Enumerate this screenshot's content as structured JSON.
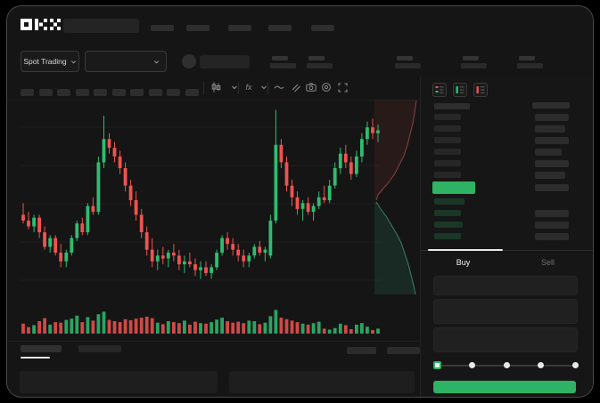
{
  "app": {
    "logo_text": "OKX"
  },
  "colors": {
    "up": "#2ebd70",
    "down": "#ee5350",
    "accent_green": "#2eb263",
    "background": "#151515",
    "placeholder": "#2b2b2b"
  },
  "top_nav": {
    "nav_placeholder_count": 5
  },
  "market_bar": {
    "selector_label": "Spot Trading",
    "stat_placeholder_count": 5,
    "stat_offsets": [
      295,
      336,
      435,
      509,
      572
    ]
  },
  "chart_toolbar": {
    "timeframe_placeholder_count": 10,
    "icons": [
      "candle-style-icon",
      "chevron-down-icon",
      "indicators-icon",
      "chevron-down-icon",
      "line-style-icon",
      "drawing-tools-icon",
      "camera-icon",
      "settings-icon",
      "fullscreen-icon"
    ]
  },
  "orderbook": {
    "view_icons": [
      "book-combined-icon",
      "book-bids-icon",
      "book-asks-icon"
    ],
    "ask_rows": [
      [
        30,
        38
      ],
      [
        30,
        34
      ],
      [
        30,
        38
      ],
      [
        30,
        30
      ],
      [
        30,
        38
      ],
      [
        30,
        34
      ]
    ],
    "price_row_right_width": 38,
    "bid_rows": [
      [
        34,
        0
      ],
      [
        30,
        38
      ],
      [
        32,
        38
      ],
      [
        30,
        38
      ]
    ]
  },
  "trade_panel": {
    "tabs": [
      {
        "label": "Buy",
        "active": true
      },
      {
        "label": "Sell",
        "active": false
      }
    ],
    "input_count": 3,
    "input_heights": [
      22,
      28,
      28
    ],
    "slider_stops": 5
  },
  "bottom_panel": {
    "tab_placeholder_count": 2,
    "action_placeholder_count": 2,
    "table_placeholder_count": 2
  },
  "chart_data": {
    "type": "candlestick",
    "title": "",
    "xlabel": "",
    "ylabel": "",
    "grid": "faint-horizontal",
    "legend": "none",
    "price_range": [
      28,
      90
    ],
    "candles_ohlc": [
      [
        52,
        56,
        49,
        50
      ],
      [
        50,
        53,
        47,
        48
      ],
      [
        48,
        52,
        46,
        51
      ],
      [
        51,
        52,
        44,
        46
      ],
      [
        46,
        48,
        40,
        41
      ],
      [
        41,
        45,
        39,
        44
      ],
      [
        44,
        45,
        38,
        39
      ],
      [
        39,
        42,
        34,
        36
      ],
      [
        36,
        40,
        34,
        39
      ],
      [
        39,
        45,
        38,
        44
      ],
      [
        44,
        50,
        43,
        49
      ],
      [
        49,
        51,
        45,
        46
      ],
      [
        46,
        56,
        45,
        55
      ],
      [
        55,
        58,
        52,
        53
      ],
      [
        53,
        72,
        52,
        70
      ],
      [
        70,
        86,
        68,
        78
      ],
      [
        78,
        80,
        73,
        75
      ],
      [
        75,
        77,
        70,
        72
      ],
      [
        72,
        74,
        66,
        68
      ],
      [
        68,
        70,
        60,
        62
      ],
      [
        62,
        64,
        55,
        57
      ],
      [
        57,
        60,
        50,
        52
      ],
      [
        52,
        54,
        44,
        46
      ],
      [
        46,
        48,
        38,
        40
      ],
      [
        40,
        44,
        34,
        36
      ],
      [
        36,
        40,
        33,
        38
      ],
      [
        38,
        41,
        35,
        37
      ],
      [
        37,
        40,
        34,
        39
      ],
      [
        39,
        42,
        36,
        38
      ],
      [
        38,
        40,
        33,
        35
      ],
      [
        35,
        38,
        32,
        36
      ],
      [
        36,
        39,
        34,
        35
      ],
      [
        35,
        37,
        31,
        33
      ],
      [
        33,
        36,
        30,
        34
      ],
      [
        34,
        36,
        31,
        32
      ],
      [
        32,
        35,
        30,
        34
      ],
      [
        34,
        40,
        33,
        39
      ],
      [
        39,
        45,
        38,
        44
      ],
      [
        44,
        46,
        40,
        42
      ],
      [
        42,
        44,
        38,
        40
      ],
      [
        40,
        42,
        36,
        38
      ],
      [
        38,
        40,
        34,
        36
      ],
      [
        36,
        39,
        34,
        38
      ],
      [
        38,
        42,
        37,
        41
      ],
      [
        41,
        43,
        38,
        39
      ],
      [
        39,
        41,
        36,
        40
      ],
      [
        38,
        52,
        37,
        50
      ],
      [
        50,
        88,
        49,
        76
      ],
      [
        76,
        78,
        68,
        70
      ],
      [
        70,
        72,
        60,
        62
      ],
      [
        62,
        64,
        55,
        58
      ],
      [
        58,
        60,
        52,
        54
      ],
      [
        54,
        57,
        50,
        56
      ],
      [
        56,
        58,
        52,
        53
      ],
      [
        53,
        56,
        50,
        55
      ],
      [
        55,
        60,
        54,
        58
      ],
      [
        58,
        62,
        56,
        57
      ],
      [
        57,
        64,
        56,
        62
      ],
      [
        62,
        70,
        61,
        68
      ],
      [
        68,
        75,
        66,
        73
      ],
      [
        73,
        76,
        68,
        70
      ],
      [
        70,
        72,
        64,
        66
      ],
      [
        66,
        74,
        65,
        72
      ],
      [
        72,
        80,
        70,
        78
      ],
      [
        78,
        84,
        76,
        82
      ],
      [
        82,
        85,
        78,
        80
      ],
      [
        80,
        83,
        77,
        81
      ]
    ],
    "volume": [
      40,
      26,
      34,
      50,
      62,
      36,
      46,
      44,
      55,
      60,
      72,
      46,
      66,
      52,
      78,
      88,
      55,
      50,
      46,
      58,
      54,
      60,
      64,
      68,
      62,
      44,
      38,
      50,
      46,
      42,
      52,
      36,
      48,
      42,
      40,
      46,
      56,
      64,
      50,
      44,
      48,
      42,
      52,
      50,
      38,
      44,
      70,
      95,
      64,
      58,
      52,
      46,
      40,
      36,
      42,
      48,
      20,
      16,
      22,
      40,
      34,
      18,
      36,
      42,
      28,
      14,
      20
    ],
    "depth": {
      "orientation": "vertical",
      "asks_line": [
        [
          47,
          0
        ],
        [
          45,
          14
        ],
        [
          43,
          26
        ],
        [
          40,
          38
        ],
        [
          37,
          50
        ],
        [
          33,
          62
        ],
        [
          28,
          72
        ],
        [
          23,
          82
        ],
        [
          16,
          92
        ],
        [
          9,
          100
        ],
        [
          4,
          106
        ],
        [
          2,
          112
        ]
      ],
      "bids_line": [
        [
          2,
          114
        ],
        [
          7,
          122
        ],
        [
          13,
          130
        ],
        [
          19,
          140
        ],
        [
          25,
          150
        ],
        [
          30,
          160
        ],
        [
          34,
          172
        ],
        [
          38,
          184
        ],
        [
          41,
          196
        ],
        [
          44,
          208
        ],
        [
          46,
          218
        ]
      ]
    }
  }
}
